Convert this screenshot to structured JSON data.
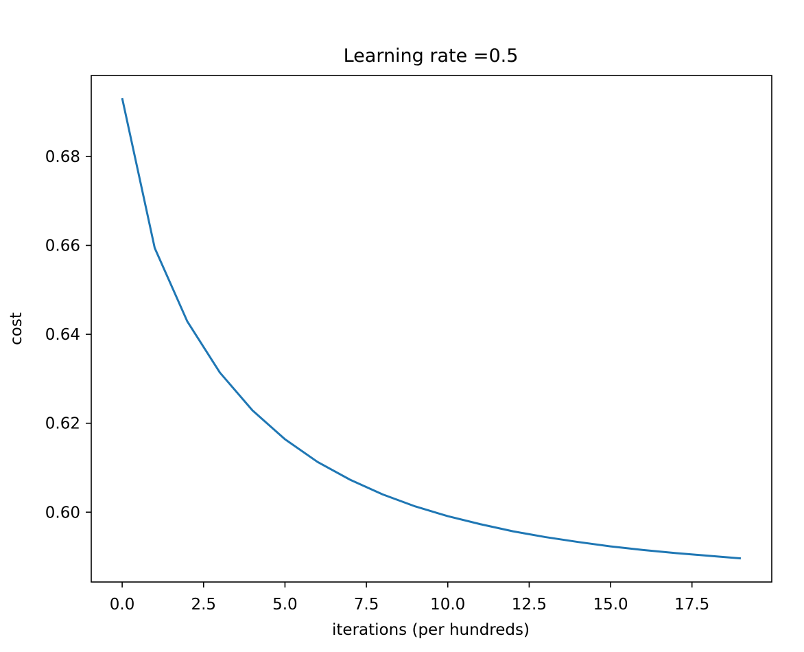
{
  "chart_data": {
    "type": "line",
    "title": "Learning rate =0.5",
    "xlabel": "iterations (per hundreds)",
    "ylabel": "cost",
    "xlim": [
      -0.95,
      19.95
    ],
    "ylim": [
      0.5843,
      0.6982
    ],
    "xticks": [
      0.0,
      2.5,
      5.0,
      7.5,
      10.0,
      12.5,
      15.0,
      17.5
    ],
    "xtick_labels": [
      "0.0",
      "2.5",
      "5.0",
      "7.5",
      "10.0",
      "12.5",
      "15.0",
      "17.5"
    ],
    "yticks": [
      0.6,
      0.62,
      0.64,
      0.66,
      0.68
    ],
    "ytick_labels": [
      "0.60",
      "0.62",
      "0.64",
      "0.66",
      "0.68"
    ],
    "grid": false,
    "series": [
      {
        "color": "#1f77b4",
        "x": [
          0,
          1,
          2,
          3,
          4,
          5,
          6,
          7,
          8,
          9,
          10,
          11,
          12,
          13,
          14,
          15,
          16,
          17,
          18,
          19
        ],
        "y": [
          0.6931,
          0.6594,
          0.6429,
          0.6314,
          0.6229,
          0.6164,
          0.6113,
          0.6073,
          0.604,
          0.6013,
          0.5991,
          0.5973,
          0.5957,
          0.5944,
          0.5933,
          0.5923,
          0.5915,
          0.5908,
          0.5902,
          0.5896
        ]
      }
    ]
  }
}
